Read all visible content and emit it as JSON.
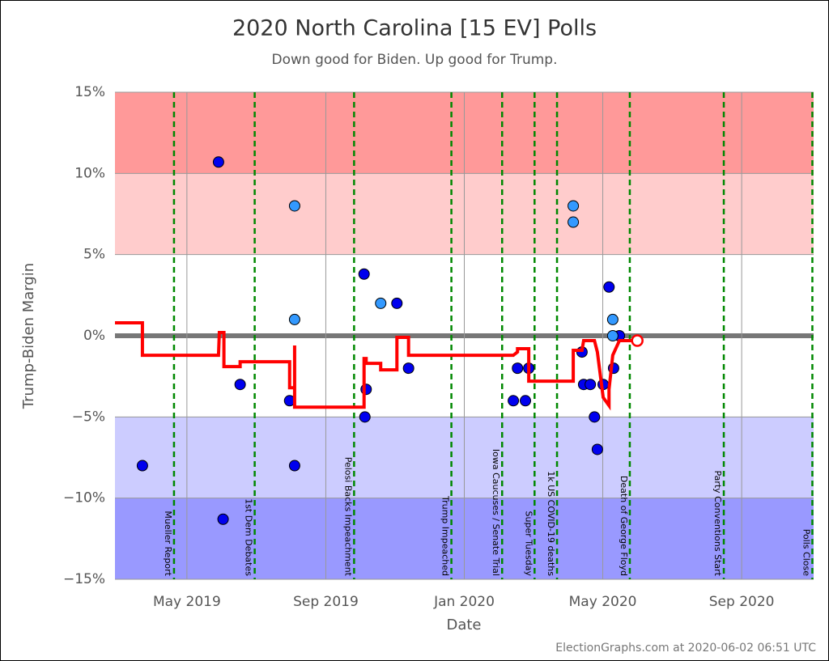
{
  "chart_data": {
    "type": "scatter",
    "title": "2020 North Carolina [15 EV] Polls",
    "subtitle": "Down good for Biden. Up good for Trump.",
    "x_label": "Date",
    "y_label": "Trump-Biden Margin",
    "footer": "ElectionGraphs.com at 2020-06-02 06:51 UTC",
    "xlim": [
      2019.16,
      2020.84
    ],
    "xticks": [
      {
        "value": 2019.333,
        "label": "May 2019"
      },
      {
        "value": 2019.667,
        "label": "Sep 2019"
      },
      {
        "value": 2020.0,
        "label": "Jan 2020"
      },
      {
        "value": 2020.333,
        "label": "May 2020"
      },
      {
        "value": 2020.667,
        "label": "Sep 2020"
      }
    ],
    "ylim": [
      -15,
      15
    ],
    "yticks": [
      {
        "value": 15,
        "label": "15%"
      },
      {
        "value": 10,
        "label": "10%"
      },
      {
        "value": 5,
        "label": "5%"
      },
      {
        "value": 0,
        "label": "0%"
      },
      {
        "value": -5,
        "label": "−5%"
      },
      {
        "value": -10,
        "label": "−10%"
      },
      {
        "value": -15,
        "label": "−15%"
      }
    ],
    "bands": [
      {
        "from": 10,
        "to": 15,
        "color": "#ff9999"
      },
      {
        "from": 5,
        "to": 10,
        "color": "#ffcccc"
      },
      {
        "from": -10,
        "to": -5,
        "color": "#ccccff"
      },
      {
        "from": -15,
        "to": -10,
        "color": "#9999ff"
      }
    ],
    "events": [
      {
        "label": "Mueller Report",
        "x": 2019.302
      },
      {
        "label": "1st Dem Debates",
        "x": 2019.496
      },
      {
        "label": "Pelosi Backs Impeachment",
        "x": 2019.735
      },
      {
        "label": "Trump Impeached",
        "x": 2019.969
      },
      {
        "label": "Iowa Caucuses / Senate Trial",
        "x": 2020.091
      },
      {
        "label": "Super Tuesday",
        "x": 2020.169
      },
      {
        "label": "1k US COVID-19 deaths",
        "x": 2020.223
      },
      {
        "label": "Death of George Floyd",
        "x": 2020.398
      },
      {
        "label": "Party Conventions Start",
        "x": 2020.624
      },
      {
        "label": "Polls Close",
        "x": 2020.837
      }
    ],
    "series": [
      {
        "style": "points",
        "color": "#0000ee",
        "x": [
          2019.226,
          2019.409,
          2019.42,
          2019.461,
          2019.58,
          2019.592,
          2019.759,
          2019.764,
          2019.761,
          2019.838,
          2019.866,
          2020.118,
          2020.128,
          2020.147,
          2020.155,
          2020.283,
          2020.287,
          2020.303,
          2020.313,
          2020.32,
          2020.334,
          2020.348,
          2020.359,
          2020.373
        ],
        "values": [
          -8,
          10.7,
          -11.3,
          -3,
          -4,
          -8,
          3.8,
          -3.3,
          -5,
          2,
          -2,
          -4,
          -2,
          -4,
          -2,
          -1,
          -3,
          -3,
          -5,
          -7,
          -3,
          3,
          -2,
          0
        ]
      },
      {
        "style": "points",
        "color": "#3399ff",
        "x": [
          2019.592,
          2019.592,
          2019.799,
          2020.262,
          2020.262,
          2020.357,
          2020.357
        ],
        "values": [
          8,
          1,
          2,
          8,
          7,
          1,
          0
        ]
      },
      {
        "style": "line",
        "color": "#ff0000",
        "x": [
          2019.16,
          2019.226,
          2019.226,
          2019.409,
          2019.411,
          2019.422,
          2019.422,
          2019.461,
          2019.461,
          2019.58,
          2019.58,
          2019.592,
          2019.592,
          2019.592,
          2019.759,
          2019.759,
          2019.764,
          2019.764,
          2019.799,
          2019.799,
          2019.838,
          2019.838,
          2019.866,
          2019.866,
          2020.118,
          2020.128,
          2020.128,
          2020.155,
          2020.155,
          2020.262,
          2020.262,
          2020.283,
          2020.287,
          2020.313,
          2020.32,
          2020.334,
          2020.348,
          2020.348,
          2020.357,
          2020.373,
          2020.416
        ],
        "values": [
          0.8,
          0.8,
          -1.2,
          -1.2,
          0.2,
          0.2,
          -1.9,
          -1.9,
          -1.6,
          -1.6,
          -3.2,
          -3.2,
          -0.6,
          -4.4,
          -4.4,
          -1.4,
          -1.4,
          -1.7,
          -1.7,
          -2.1,
          -2.1,
          -0.1,
          -0.1,
          -1.2,
          -1.2,
          -1.0,
          -0.8,
          -0.8,
          -2.8,
          -2.8,
          -0.9,
          -0.9,
          -0.3,
          -0.3,
          -1.0,
          -3.8,
          -4.3,
          -3.3,
          -1.2,
          -0.3,
          -0.3
        ]
      },
      {
        "style": "open-point",
        "color": "#ff0000",
        "x": [
          2020.416
        ],
        "values": [
          -0.3
        ]
      }
    ]
  }
}
